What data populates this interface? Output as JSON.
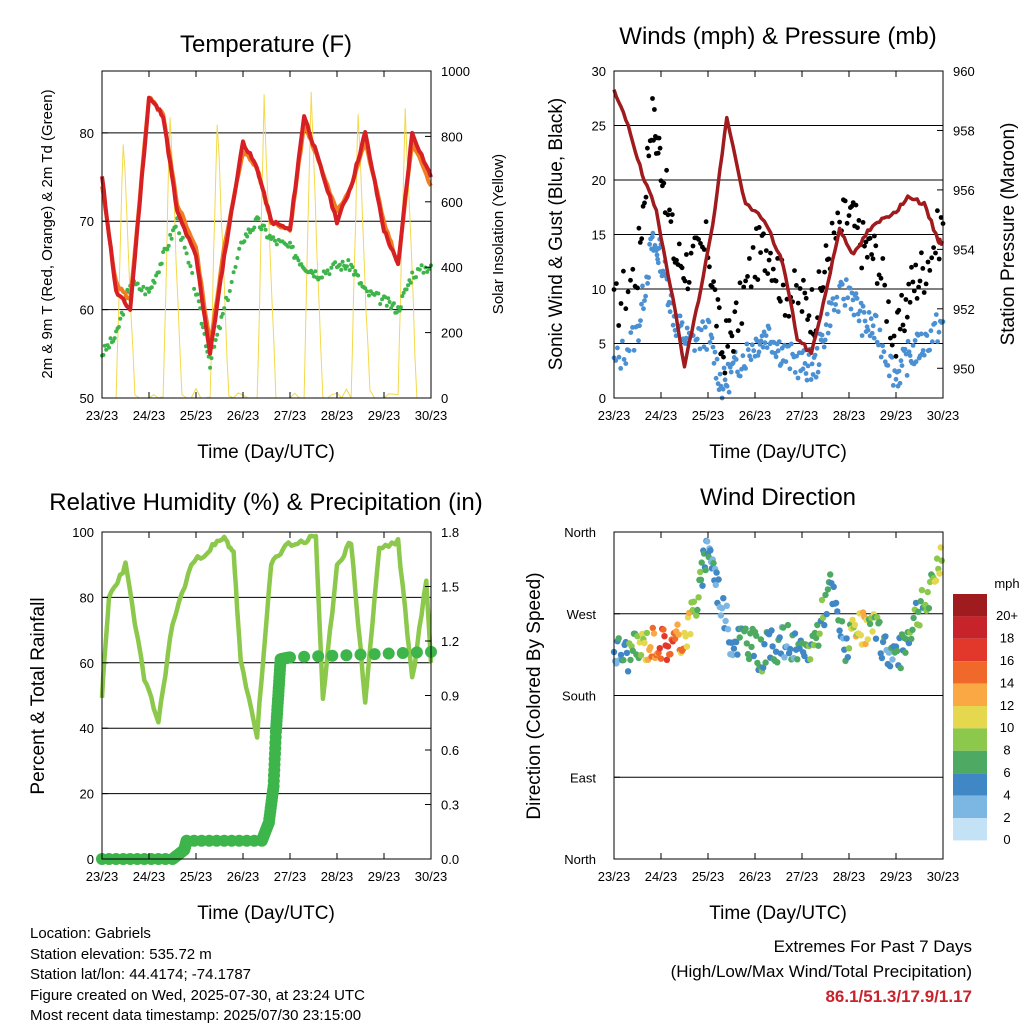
{
  "x_ticks": [
    "23/23",
    "24/23",
    "25/23",
    "26/23",
    "27/23",
    "28/23",
    "29/23",
    "30/23"
  ],
  "x_label": "Time (Day/UTC)",
  "panels": {
    "temperature": {
      "title": "Temperature (F)",
      "ylabel_left": "2m & 9m T (Red, Orange) & 2m Td (Green)",
      "ylabel_right": "Solar Insolation (Yellow)",
      "yticks_left": [
        "50",
        "60",
        "70",
        "80"
      ],
      "yticks_right": [
        "0",
        "200",
        "400",
        "600",
        "800",
        "1000"
      ]
    },
    "winds": {
      "title": "Winds (mph) & Pressure (mb)",
      "ylabel_left": "Sonic Wind & Gust (Blue, Black)",
      "ylabel_right": "Station Pressure (Maroon)",
      "yticks_left": [
        "0",
        "5",
        "10",
        "15",
        "20",
        "25",
        "30"
      ],
      "yticks_right": [
        "950",
        "952",
        "954",
        "956",
        "958",
        "960"
      ]
    },
    "humidity": {
      "title": "Relative Humidity (%) & Precipitation (in)",
      "ylabel_left": "Percent & Total Rainfall",
      "yticks_left": [
        "0",
        "20",
        "40",
        "60",
        "80",
        "100"
      ],
      "yticks_right": [
        "0.0",
        "0.3",
        "0.6",
        "0.9",
        "1.2",
        "1.5",
        "1.8"
      ]
    },
    "direction": {
      "title": "Wind Direction",
      "ylabel_left": "Direction (Colored By Speed)",
      "yticks_left": [
        "North",
        "East",
        "South",
        "West",
        "North"
      ],
      "legend_title": "mph",
      "legend_labels": [
        "20+",
        "18",
        "16",
        "14",
        "12",
        "10",
        "8",
        "6",
        "4",
        "2",
        "0"
      ],
      "legend_colors": [
        "#a01b1e",
        "#c7232a",
        "#e1382b",
        "#f0692b",
        "#f9a844",
        "#e5d84e",
        "#8cc84b",
        "#4eaa63",
        "#3f87c5",
        "#7cb7e3",
        "#c3e2f6"
      ]
    }
  },
  "info": {
    "location": "Location: Gabriels",
    "elevation": "Station elevation: 535.72 m",
    "latlon": "Station lat/lon: 44.4174; -74.1787",
    "created": "Figure created on Wed, 2025-07-30, at 23:24 UTC",
    "recent": "Most recent data timestamp: 2025/07/30 23:15:00"
  },
  "extremes": {
    "line1": "Extremes For Past 7 Days",
    "line2": "(High/Low/Max Wind/Total Precipitation)",
    "values": "86.1/51.3/17.9/1.17"
  },
  "chart_data": [
    {
      "type": "line",
      "title": "Temperature (F)",
      "xlabel": "Time (Day/UTC)",
      "x_domain": [
        0,
        7
      ],
      "ylim": [
        50,
        87
      ],
      "y2lim": [
        0,
        1000
      ],
      "series": [
        {
          "name": "2m T",
          "color": "#d62024",
          "x": [
            0,
            0.3,
            0.6,
            1.0,
            1.3,
            1.6,
            2.0,
            2.3,
            2.6,
            3.0,
            3.3,
            3.6,
            4.0,
            4.3,
            4.6,
            5.0,
            5.3,
            5.6,
            6.0,
            6.3,
            6.6,
            7.0
          ],
          "y": [
            75,
            62,
            60,
            84,
            82,
            71,
            66,
            55,
            66,
            79,
            76,
            70,
            69,
            82,
            77,
            70,
            74,
            80,
            69,
            65,
            80,
            75
          ]
        },
        {
          "name": "9m T",
          "color": "#f07d22",
          "x": [
            0,
            0.3,
            0.6,
            1.0,
            1.3,
            1.6,
            2.0,
            2.3,
            2.6,
            3.0,
            3.3,
            3.6,
            4.0,
            4.3,
            4.6,
            5.0,
            5.3,
            5.6,
            6.0,
            6.3,
            6.6,
            7.0
          ],
          "y": [
            74,
            63,
            61,
            84,
            82,
            72,
            67,
            56,
            67,
            78,
            76,
            70,
            69,
            81,
            77,
            71,
            74,
            79,
            70,
            65,
            79,
            74
          ]
        },
        {
          "name": "2m Td",
          "color": "#3db54a",
          "x": [
            0,
            0.3,
            0.6,
            1.0,
            1.3,
            1.6,
            2.0,
            2.3,
            2.6,
            3.0,
            3.3,
            3.6,
            4.0,
            4.3,
            4.6,
            5.0,
            5.3,
            5.6,
            6.0,
            6.3,
            6.6,
            7.0
          ],
          "y": [
            55,
            57,
            63,
            62,
            66,
            70,
            62,
            54,
            60,
            68,
            70,
            68,
            67,
            65,
            64,
            65,
            65,
            62,
            61,
            60,
            64,
            65
          ]
        },
        {
          "name": "Solar Insolation",
          "color": "#f3d94b",
          "axis": "right",
          "x": [
            0.3,
            0.45,
            0.7,
            1.3,
            1.45,
            1.7,
            2.3,
            2.45,
            2.7,
            3.3,
            3.45,
            3.7,
            4.3,
            4.45,
            4.7,
            5.3,
            5.45,
            5.7,
            6.3,
            6.45,
            6.7
          ],
          "y": [
            0,
            800,
            0,
            0,
            880,
            0,
            0,
            860,
            0,
            0,
            900,
            0,
            0,
            920,
            0,
            0,
            870,
            0,
            0,
            910,
            0
          ]
        }
      ]
    },
    {
      "type": "line",
      "title": "Winds (mph) & Pressure (mb)",
      "xlabel": "Time (Day/UTC)",
      "x_domain": [
        0,
        7
      ],
      "ylim": [
        0,
        30
      ],
      "y2lim": [
        949,
        960
      ],
      "series": [
        {
          "name": "Sonic Wind",
          "color": "#4a90d2",
          "x": [
            0,
            0.5,
            0.8,
            1.0,
            1.3,
            1.6,
            2.0,
            2.3,
            2.6,
            3.0,
            3.3,
            3.6,
            4.0,
            4.3,
            4.6,
            5.0,
            5.3,
            5.6,
            6.0,
            6.3,
            6.6,
            7.0
          ],
          "y": [
            3,
            6,
            14,
            13,
            7,
            5,
            6,
            1,
            3,
            5,
            6,
            4,
            3,
            3,
            8,
            10,
            7,
            6,
            2,
            4,
            5,
            7
          ]
        },
        {
          "name": "Gust",
          "color": "#000000",
          "x": [
            0,
            0.5,
            0.8,
            1.0,
            1.3,
            1.6,
            2.0,
            2.3,
            2.6,
            3.0,
            3.3,
            3.6,
            4.0,
            4.3,
            4.6,
            5.0,
            5.3,
            5.6,
            6.0,
            6.3,
            6.6,
            7.0
          ],
          "y": [
            8,
            12,
            26,
            22,
            13,
            12,
            14,
            4,
            7,
            13,
            14,
            10,
            9,
            8,
            14,
            17,
            14,
            13,
            5,
            10,
            12,
            16
          ]
        },
        {
          "name": "Station Pressure",
          "color": "#a01b1e",
          "axis": "right",
          "x": [
            0,
            0.3,
            0.6,
            0.9,
            1.2,
            1.5,
            1.8,
            2.1,
            2.4,
            2.8,
            3.2,
            3.6,
            3.9,
            4.2,
            4.5,
            4.8,
            5.1,
            5.4,
            5.7,
            6.0,
            6.3,
            6.6,
            6.9,
            7.0
          ],
          "y": [
            959.3,
            958.2,
            956.5,
            955.3,
            952.8,
            950.1,
            952.3,
            954.8,
            958.4,
            955.5,
            955.0,
            953.5,
            951.0,
            950.5,
            952.5,
            954.7,
            953.8,
            954.6,
            955.0,
            955.3,
            955.8,
            955.5,
            954.3,
            954.2
          ]
        }
      ]
    },
    {
      "type": "line",
      "title": "Relative Humidity (%) & Precipitation (in)",
      "xlabel": "Time (Day/UTC)",
      "x_domain": [
        0,
        7
      ],
      "ylim": [
        0,
        100
      ],
      "y2lim": [
        0,
        1.8
      ],
      "series": [
        {
          "name": "Relative Humidity",
          "color": "#8cc84b",
          "x": [
            0,
            0.15,
            0.5,
            0.9,
            1.2,
            1.5,
            1.9,
            2.3,
            2.6,
            2.8,
            2.95,
            3.3,
            3.6,
            3.9,
            4.3,
            4.55,
            4.7,
            5.0,
            5.3,
            5.6,
            5.9,
            6.3,
            6.6,
            6.9,
            7.0
          ],
          "y": [
            50,
            80,
            90,
            55,
            42,
            72,
            90,
            95,
            98,
            94,
            60,
            38,
            90,
            96,
            97,
            99,
            48,
            90,
            97,
            48,
            95,
            97,
            55,
            85,
            60
          ]
        },
        {
          "name": "Total Precipitation",
          "color": "#3db54a",
          "axis": "right",
          "x": [
            0,
            1.5,
            1.75,
            1.8,
            3.4,
            3.55,
            3.65,
            3.7,
            3.75,
            3.8,
            4.0,
            7.0
          ],
          "y": [
            0,
            0,
            0.05,
            0.1,
            0.1,
            0.2,
            0.4,
            0.7,
            0.9,
            1.1,
            1.11,
            1.14
          ]
        }
      ]
    },
    {
      "type": "scatter",
      "title": "Wind Direction",
      "xlabel": "Time (Day/UTC)",
      "ylabel": "Direction (Colored By Speed)",
      "x_domain": [
        0,
        7
      ],
      "ylim": [
        0,
        360
      ],
      "y_ticks": [
        "North",
        "East",
        "South",
        "West",
        "North"
      ],
      "colorbar_title": "mph",
      "series": [
        {
          "name": "Direction",
          "x": [
            0,
            0.3,
            0.6,
            0.9,
            1.2,
            1.5,
            1.8,
            2.0,
            2.2,
            2.5,
            2.8,
            3.1,
            3.4,
            3.7,
            4.0,
            4.3,
            4.6,
            4.9,
            5.2,
            5.5,
            5.8,
            6.1,
            6.4,
            6.7,
            7.0
          ],
          "y": [
            230,
            225,
            235,
            240,
            235,
            245,
            290,
            350,
            300,
            240,
            245,
            225,
            235,
            240,
            220,
            245,
            300,
            235,
            250,
            255,
            230,
            225,
            270,
            285,
            350
          ],
          "speed": [
            3,
            5,
            8,
            14,
            15,
            12,
            6,
            4,
            3,
            3,
            5,
            6,
            5,
            4,
            5,
            7,
            5,
            4,
            11,
            8,
            3,
            5,
            6,
            7,
            9
          ]
        }
      ]
    }
  ]
}
